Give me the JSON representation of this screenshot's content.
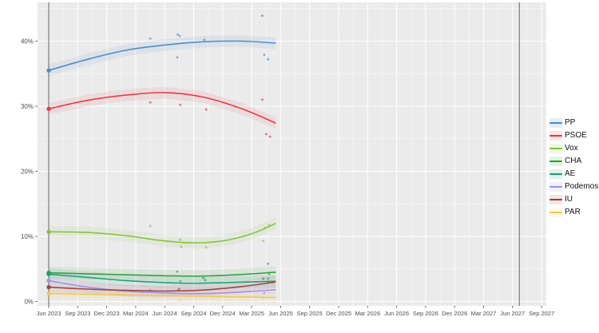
{
  "chart_data": {
    "type": "scatter",
    "subtype": "polls-with-loess-trend",
    "title": "",
    "xlabel": "",
    "ylabel": "",
    "x_axis": {
      "tick_labels": [
        "Jun 2023",
        "Sep 2023",
        "Dec 2023",
        "Mar 2024",
        "Jun 2024",
        "Sep 2024",
        "Dec 2024",
        "Mar 2025",
        "Jun 2025",
        "Sep 2025",
        "Dec 2025",
        "Mar 2026",
        "Jun 2026",
        "Sep 2026",
        "Dec 2026",
        "Mar 2027",
        "Jun 2027",
        "Sep 2027"
      ],
      "tick_months": [
        0,
        3,
        6,
        9,
        12,
        15,
        18,
        21,
        24,
        27,
        30,
        33,
        36,
        39,
        42,
        45,
        48,
        51
      ]
    },
    "y_axis": {
      "tick_labels": [
        "0%",
        "10%",
        "20%",
        "30%",
        "40%"
      ],
      "tick_values": [
        0,
        10,
        20,
        30,
        40
      ],
      "range": [
        0,
        46
      ]
    },
    "grid": "on",
    "panel_background": "#EBEBEB",
    "major_grid_color": "#FFFFFF",
    "minor_grid_color": "#F5F5F5",
    "axis_text_color": "#4D4D4D",
    "election_marker_months": [
      0,
      48.7
    ],
    "election_marker_color": "#666666",
    "legend_position": "right",
    "series": [
      {
        "name": "PP",
        "color": "#4689C8",
        "result_pct": 35.5,
        "trend": [
          [
            0,
            35.5
          ],
          [
            4,
            37.2
          ],
          [
            8,
            38.6
          ],
          [
            12,
            39.4
          ],
          [
            16,
            39.9
          ],
          [
            20,
            40.0
          ],
          [
            23.5,
            39.7
          ]
        ],
        "polls": [
          [
            10.5,
            40.4
          ],
          [
            13.35,
            41.0
          ],
          [
            13.55,
            40.8
          ],
          [
            13.3,
            37.5
          ],
          [
            16.1,
            40.2
          ],
          [
            22.1,
            43.9
          ],
          [
            22.3,
            37.9
          ],
          [
            22.7,
            37.2
          ]
        ]
      },
      {
        "name": "PSOE",
        "color": "#E8333F",
        "result_pct": 29.6,
        "trend": [
          [
            0,
            29.6
          ],
          [
            4,
            30.9
          ],
          [
            8,
            31.7
          ],
          [
            12,
            32.1
          ],
          [
            16,
            31.4
          ],
          [
            20,
            29.6
          ],
          [
            23.5,
            27.4
          ]
        ],
        "polls": [
          [
            10.5,
            30.6
          ],
          [
            13.6,
            30.2
          ],
          [
            16.3,
            29.5
          ],
          [
            22.1,
            31.0
          ],
          [
            22.5,
            25.7
          ],
          [
            22.9,
            25.3
          ]
        ]
      },
      {
        "name": "Vox",
        "color": "#84C139",
        "result_pct": 10.7,
        "trend": [
          [
            0,
            10.7
          ],
          [
            4,
            10.6
          ],
          [
            8,
            10.1
          ],
          [
            12,
            9.3
          ],
          [
            15,
            9.0
          ],
          [
            18,
            9.3
          ],
          [
            21,
            10.4
          ],
          [
            23.5,
            12.0
          ]
        ],
        "polls": [
          [
            10.5,
            11.6
          ],
          [
            13.6,
            9.5
          ],
          [
            13.7,
            8.4
          ],
          [
            16.3,
            8.3
          ],
          [
            22.2,
            9.3
          ],
          [
            22.4,
            11.3
          ],
          [
            22.8,
            11.7
          ]
        ]
      },
      {
        "name": "CHA",
        "color": "#2B9E33",
        "result_pct": 4.4,
        "trend": [
          [
            0,
            4.4
          ],
          [
            4,
            4.25
          ],
          [
            8,
            4.1
          ],
          [
            12,
            3.95
          ],
          [
            16,
            3.9
          ],
          [
            20,
            4.15
          ],
          [
            23.5,
            4.5
          ]
        ],
        "polls": [
          [
            13.3,
            4.6
          ],
          [
            16.0,
            3.6
          ],
          [
            22.7,
            5.8
          ],
          [
            22.8,
            4.2
          ]
        ]
      },
      {
        "name": "AE",
        "color": "#169E74",
        "result_pct": 4.2,
        "trend": [
          [
            0,
            4.2
          ],
          [
            4,
            3.7
          ],
          [
            8,
            3.2
          ],
          [
            12,
            2.9
          ],
          [
            15,
            2.8
          ],
          [
            18,
            2.9
          ],
          [
            23.5,
            3.1
          ]
        ],
        "polls": [
          [
            13.6,
            3.1
          ],
          [
            16.2,
            3.3
          ],
          [
            22.7,
            3.5
          ]
        ]
      },
      {
        "name": "Podemos",
        "color": "#A08FE3",
        "result_pct": 3.2,
        "trend": [
          [
            0,
            3.2
          ],
          [
            4,
            2.2
          ],
          [
            8,
            1.6
          ],
          [
            12,
            1.3
          ],
          [
            16,
            1.2
          ],
          [
            20,
            1.45
          ],
          [
            23.5,
            1.8
          ]
        ],
        "polls": [
          [
            10.5,
            1.8
          ],
          [
            13.4,
            1.7
          ],
          [
            22.3,
            1.3
          ]
        ]
      },
      {
        "name": "IU",
        "color": "#9B3E3C",
        "result_pct": 2.2,
        "trend": [
          [
            0,
            2.2
          ],
          [
            4,
            1.9
          ],
          [
            8,
            1.7
          ],
          [
            12,
            1.6
          ],
          [
            16,
            1.75
          ],
          [
            20,
            2.3
          ],
          [
            23.5,
            3.0
          ]
        ],
        "polls": [
          [
            13.5,
            1.9
          ],
          [
            22.2,
            3.5
          ],
          [
            22.7,
            3.0
          ]
        ]
      },
      {
        "name": "PAR",
        "color": "#EFC850",
        "result_pct": 1.2,
        "trend": [
          [
            0,
            1.2
          ],
          [
            4,
            1.1
          ],
          [
            8,
            1.0
          ],
          [
            12,
            0.9
          ],
          [
            16,
            0.8
          ],
          [
            20,
            0.7
          ],
          [
            23.5,
            0.6
          ]
        ],
        "polls": [
          [
            13.6,
            0.2
          ],
          [
            22.2,
            0.6
          ]
        ]
      }
    ]
  },
  "legend": {
    "items": [
      {
        "label": "PP"
      },
      {
        "label": "PSOE"
      },
      {
        "label": "Vox"
      },
      {
        "label": "CHA"
      },
      {
        "label": "AE"
      },
      {
        "label": "Podemos"
      },
      {
        "label": "IU"
      },
      {
        "label": "PAR"
      }
    ]
  }
}
